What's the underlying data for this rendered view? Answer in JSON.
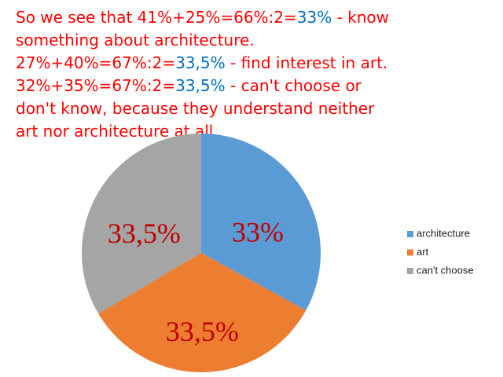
{
  "text": {
    "lines": [
      {
        "parts": [
          {
            "text": "So we see that 41%+25%=66%:2=",
            "color": "#ff0000"
          },
          {
            "text": "33%",
            "color": "#0070c0"
          },
          {
            "text": " - know",
            "color": "#ff0000"
          }
        ]
      },
      {
        "parts": [
          {
            "text": "something about architecture.",
            "color": "#ff0000"
          }
        ]
      },
      {
        "parts": [
          {
            "text": "27%+40%=67%:2=",
            "color": "#ff0000"
          },
          {
            "text": "33,5%",
            "color": "#0070c0"
          },
          {
            "text": " - find interest in art.",
            "color": "#ff0000"
          }
        ]
      },
      {
        "parts": [
          {
            "text": "32%+35%=67%:2=",
            "color": "#ff0000"
          },
          {
            "text": "33,5%",
            "color": "#0070c0"
          },
          {
            "text": " - can't choose or",
            "color": "#ff0000"
          }
        ]
      },
      {
        "parts": [
          {
            "text": "don't know, because they understand neither",
            "color": "#ff0000"
          }
        ]
      },
      {
        "parts": [
          {
            "text": "art nor architecture at all.",
            "color": "#ff0000"
          }
        ]
      }
    ]
  },
  "chart_data": {
    "type": "pie",
    "categories": [
      "architecture",
      "art",
      "can't choose"
    ],
    "values": [
      33,
      33.5,
      33.5
    ],
    "value_labels": [
      "33%",
      "33,5%",
      "33,5%"
    ],
    "colors": [
      "#5b9bd5",
      "#ed7d31",
      "#a5a5a5"
    ],
    "legend": "right"
  }
}
